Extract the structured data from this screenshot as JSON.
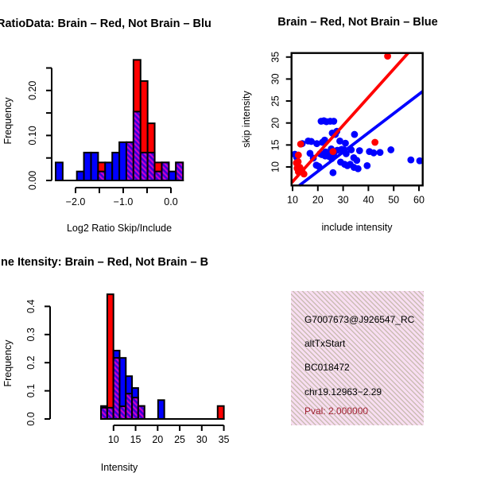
{
  "colors": {
    "red": "#FF0000",
    "blue": "#0000FF",
    "hatch_magenta": "#CC00CC",
    "hatch_violet": "#3A00D9",
    "axis_black": "#000000",
    "pval_red": "#A02030",
    "info_box_pink": "#F8DEF2",
    "info_box_hatch": "#9E9C76"
  },
  "chart_data": [
    {
      "type": "bar",
      "subtype": "overlaid-histograms",
      "title": "RatioData: Brain – Red, Not Brain – Blu",
      "xlabel": "Log2 Ratio Skip/Include",
      "ylabel": "Frequency",
      "series_legend": "red = Brain, blue = Not Brain, purple hatch = overlap",
      "bin_width": 0.1483,
      "ylim": [
        0,
        0.25
      ],
      "xlim": [
        -2.45,
        0.3
      ],
      "bars": [
        {
          "x": -2.417,
          "blue": 0.04,
          "red": 0
        },
        {
          "x": -2.268,
          "blue": 0,
          "red": 0
        },
        {
          "x": -2.12,
          "blue": 0,
          "red": 0
        },
        {
          "x": -1.972,
          "blue": 0.02,
          "red": 0
        },
        {
          "x": -1.824,
          "blue": 0.062,
          "red": 0
        },
        {
          "x": -1.675,
          "blue": 0.062,
          "red": 0
        },
        {
          "x": -1.527,
          "blue": 0.02,
          "red": 0.04
        },
        {
          "x": -1.379,
          "blue": 0.04,
          "red": 0
        },
        {
          "x": -1.23,
          "blue": 0.062,
          "red": 0
        },
        {
          "x": -1.082,
          "blue": 0.085,
          "red": 0
        },
        {
          "x": -0.934,
          "blue": 0.085,
          "red": 0.085
        },
        {
          "x": -0.785,
          "blue": 0.153,
          "red": 0.268
        },
        {
          "x": -0.637,
          "blue": 0.062,
          "red": 0.221
        },
        {
          "x": -0.489,
          "blue": 0.062,
          "red": 0.127
        },
        {
          "x": -0.341,
          "blue": 0.02,
          "red": 0.04
        },
        {
          "x": -0.192,
          "blue": 0.04,
          "red": 0.04
        },
        {
          "x": -0.044,
          "blue": 0.02,
          "red": 0
        },
        {
          "x": 0.104,
          "blue": 0.04,
          "red": 0.04
        }
      ],
      "x_ticks": [
        {
          "v": -2.0,
          "label": "−2.0"
        },
        {
          "v": -1.5,
          "label": ""
        },
        {
          "v": -1.0,
          "label": "−1.0"
        },
        {
          "v": -0.5,
          "label": ""
        },
        {
          "v": 0.0,
          "label": "0.0"
        }
      ],
      "y_ticks": [
        {
          "v": 0.0,
          "label": "0.00"
        },
        {
          "v": 0.05,
          "label": ""
        },
        {
          "v": 0.1,
          "label": "0.10"
        },
        {
          "v": 0.15,
          "label": ""
        },
        {
          "v": 0.2,
          "label": "0.20"
        },
        {
          "v": 0.25,
          "label": ""
        }
      ]
    },
    {
      "type": "scatter",
      "title": "Brain – Red, Not Brain – Blue",
      "xlabel": "include intensity",
      "ylabel": "skip intensity",
      "xlim": [
        9.6,
        61.5
      ],
      "ylim": [
        5.8,
        35.9
      ],
      "x_ticks": [
        {
          "v": 10,
          "label": "10"
        },
        {
          "v": 20,
          "label": "20"
        },
        {
          "v": 30,
          "label": "30"
        },
        {
          "v": 40,
          "label": "40"
        },
        {
          "v": 50,
          "label": "50"
        },
        {
          "v": 60,
          "label": "60"
        }
      ],
      "y_ticks": [
        {
          "v": 10,
          "label": "10"
        },
        {
          "v": 15,
          "label": "15"
        },
        {
          "v": 20,
          "label": "20"
        },
        {
          "v": 25,
          "label": "25"
        },
        {
          "v": 30,
          "label": "30"
        },
        {
          "v": 35,
          "label": "35"
        }
      ],
      "series": [
        {
          "name": "Not Brain",
          "color": "#0000FF",
          "points": [
            [
              10.9,
              12.9
            ],
            [
              11.6,
              12.2
            ],
            [
              13.8,
              15.3
            ],
            [
              16.2,
              15.9
            ],
            [
              17.4,
              15.8
            ],
            [
              16.9,
              13.1
            ],
            [
              18.2,
              12.0
            ],
            [
              19.6,
              15.3
            ],
            [
              19.4,
              10.4
            ],
            [
              20.4,
              10.1
            ],
            [
              21.3,
              20.4
            ],
            [
              22.4,
              20.5
            ],
            [
              23.4,
              20.3
            ],
            [
              24.9,
              20.4
            ],
            [
              26.3,
              20.4
            ],
            [
              21.8,
              15.6
            ],
            [
              22.7,
              16.1
            ],
            [
              23.1,
              13.4
            ],
            [
              23.9,
              12.9
            ],
            [
              24.4,
              12.4
            ],
            [
              22.9,
              12.5
            ],
            [
              21.6,
              12.8
            ],
            [
              25.7,
              17.7
            ],
            [
              26.9,
              17.4
            ],
            [
              27.5,
              18.1
            ],
            [
              25.3,
              14.1
            ],
            [
              26.3,
              13.1
            ],
            [
              25.5,
              11.9
            ],
            [
              27.7,
              13.8
            ],
            [
              28.7,
              15.9
            ],
            [
              30.9,
              15.4
            ],
            [
              29.4,
              14.0
            ],
            [
              30.4,
              13.9
            ],
            [
              29.0,
              11.1
            ],
            [
              30.6,
              10.6
            ],
            [
              31.7,
              10.3
            ],
            [
              32.8,
              10.6
            ],
            [
              31.2,
              13.0
            ],
            [
              33.2,
              13.9
            ],
            [
              34.5,
              17.4
            ],
            [
              34.2,
              12.1
            ],
            [
              35.4,
              11.5
            ],
            [
              34.3,
              9.9
            ],
            [
              35.9,
              9.6
            ],
            [
              36.5,
              13.7
            ],
            [
              39.5,
              10.3
            ],
            [
              40.4,
              13.5
            ],
            [
              42.1,
              13.2
            ],
            [
              44.6,
              13.3
            ],
            [
              48.9,
              13.9
            ],
            [
              56.8,
              11.6
            ],
            [
              60.3,
              11.4
            ],
            [
              26.0,
              8.7
            ],
            [
              20.9,
              13.0
            ]
          ]
        },
        {
          "name": "Brain",
          "color": "#FF0000",
          "points": [
            [
              47.6,
              35.2
            ],
            [
              42.6,
              15.6
            ],
            [
              13.2,
              15.2
            ],
            [
              12.3,
              12.7
            ],
            [
              11.5,
              10.9
            ],
            [
              12.2,
              11.2
            ],
            [
              12.9,
              9.9
            ],
            [
              13.7,
              9.2
            ],
            [
              14.5,
              8.4
            ],
            [
              12.3,
              8.9
            ],
            [
              11.8,
              9.7
            ],
            [
              26.0,
              13.5
            ]
          ]
        }
      ],
      "lines": [
        {
          "name": "brain-fit",
          "color": "#FF0000",
          "x1": 9.6,
          "y1": 6.39,
          "x2": 55.7,
          "y2": 35.9
        },
        {
          "name": "not-brain-fit",
          "color": "#0000FF",
          "x1": 12.65,
          "y1": 5.78,
          "x2": 61.5,
          "y2": 27.2
        }
      ]
    },
    {
      "type": "bar",
      "subtype": "overlaid-histograms",
      "title": "ne Itensity: Brain – Red, Not Brain – B",
      "xlabel": "Intensity",
      "ylabel": "Frequency",
      "series_legend": "red = Brain, blue = Not Brain, purple hatch = overlap",
      "bin_width": 1.405,
      "ylim": [
        0,
        0.45
      ],
      "xlim": [
        7,
        36
      ],
      "bars": [
        {
          "x": 7.17,
          "blue": 0.046,
          "red": 0.04
        },
        {
          "x": 8.575,
          "blue": 0.04,
          "red": 0.443
        },
        {
          "x": 9.98,
          "blue": 0.243,
          "red": 0.217
        },
        {
          "x": 11.385,
          "blue": 0.217,
          "red": 0.045
        },
        {
          "x": 12.79,
          "blue": 0.152,
          "red": 0.09
        },
        {
          "x": 14.195,
          "blue": 0.11,
          "red": 0.076
        },
        {
          "x": 15.6,
          "blue": 0.046,
          "red": 0.046
        },
        {
          "x": 20.1,
          "blue": 0.067,
          "red": 0
        },
        {
          "x": 33.6,
          "blue": 0,
          "red": 0.046
        }
      ],
      "x_ticks": [
        {
          "v": 10,
          "label": "10"
        },
        {
          "v": 15,
          "label": "15"
        },
        {
          "v": 20,
          "label": "20"
        },
        {
          "v": 25,
          "label": "25"
        },
        {
          "v": 30,
          "label": "30"
        },
        {
          "v": 35,
          "label": "35"
        }
      ],
      "y_ticks": [
        {
          "v": 0.0,
          "label": "0.0"
        },
        {
          "v": 0.1,
          "label": "0.1"
        },
        {
          "v": 0.2,
          "label": "0.2"
        },
        {
          "v": 0.3,
          "label": "0.3"
        },
        {
          "v": 0.4,
          "label": "0.4"
        }
      ]
    }
  ],
  "info_box": {
    "lines": [
      "G7007673@J926547_RC",
      "altTxStart",
      "BC018472",
      "chr19.12963−2.29"
    ],
    "pval_line": "Pval: 2.000000"
  }
}
